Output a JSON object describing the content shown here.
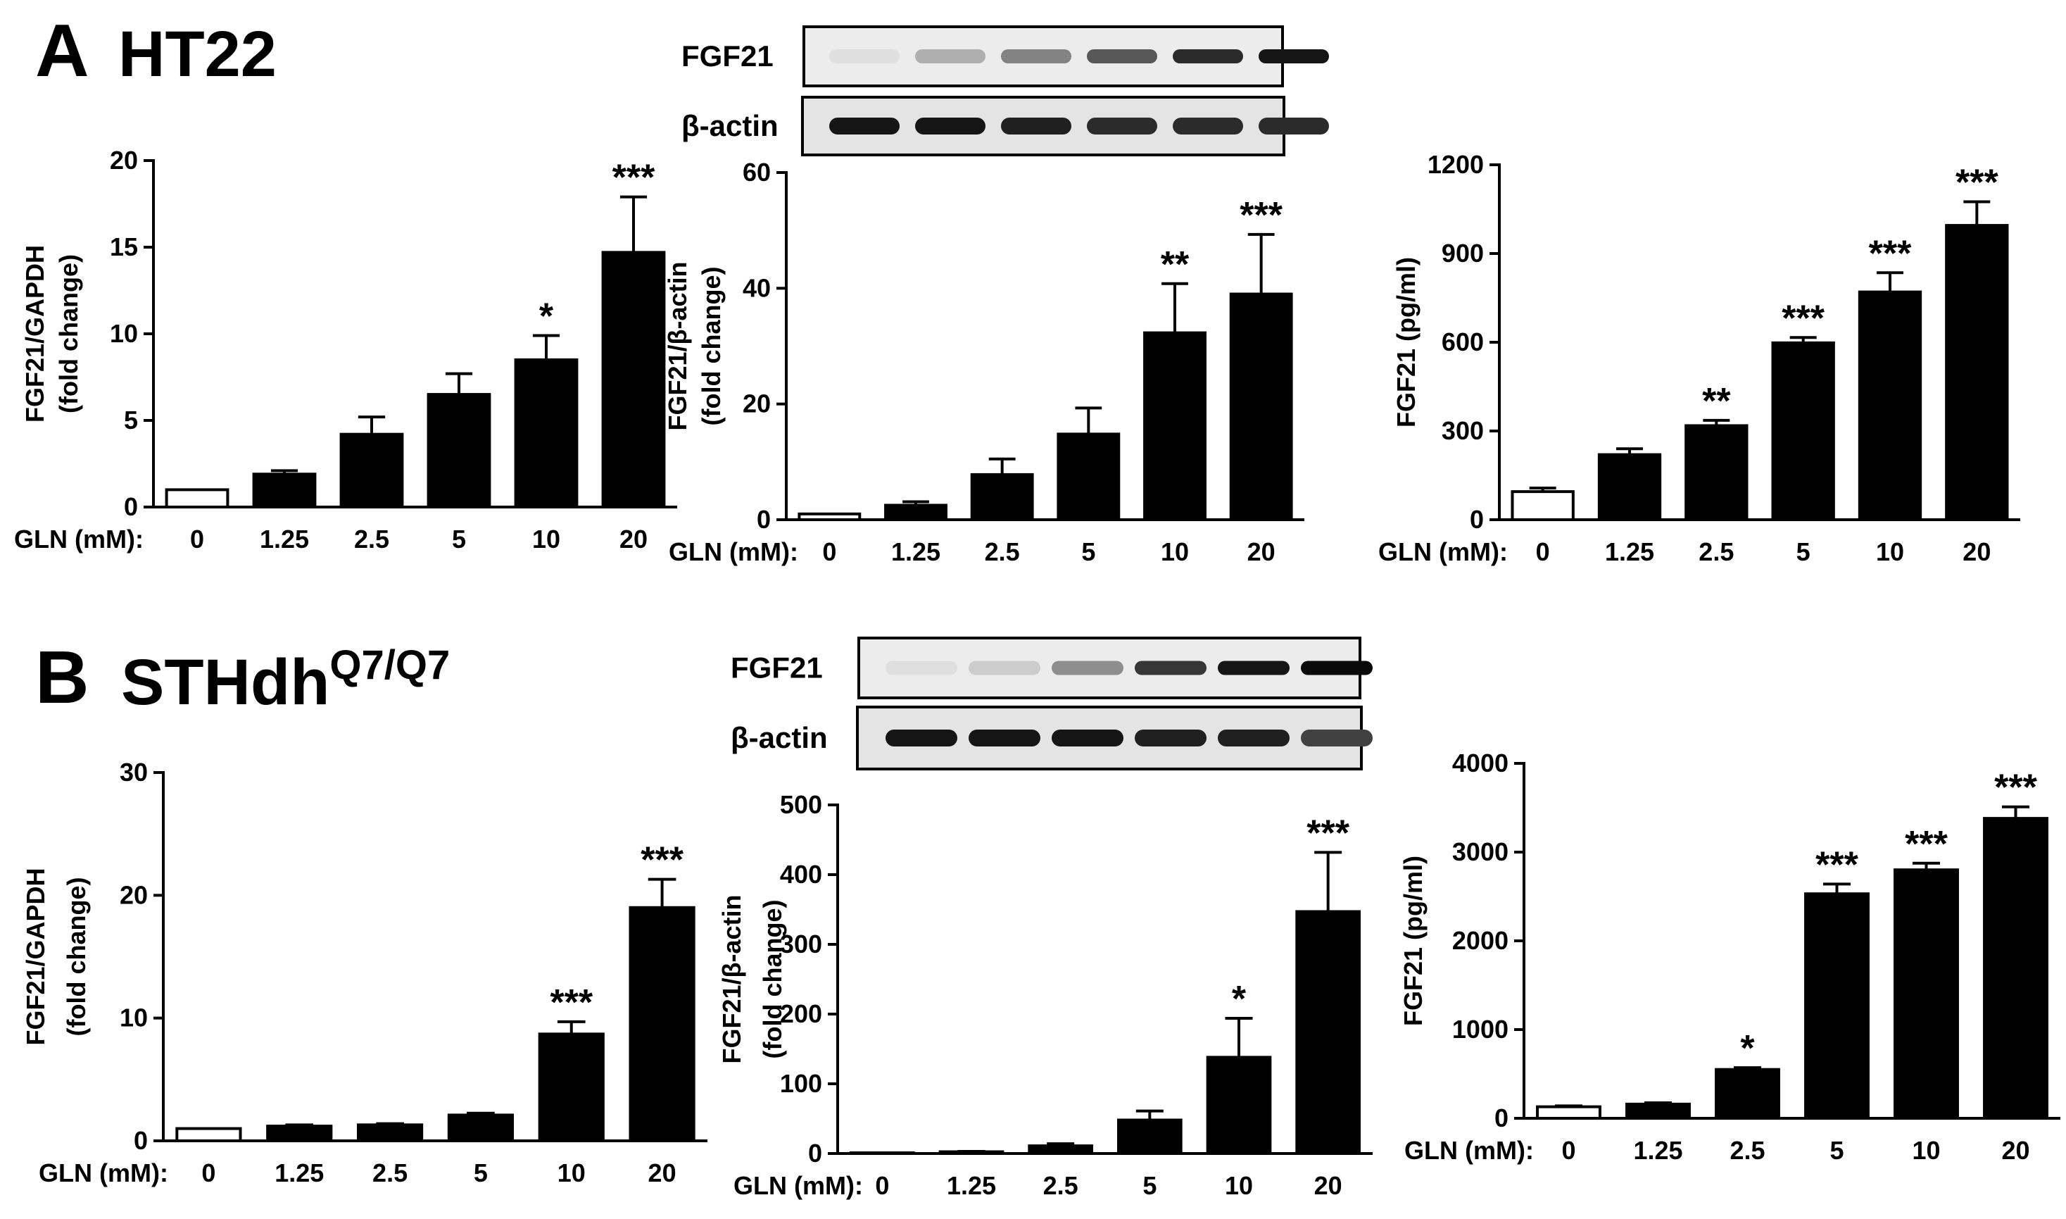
{
  "panels": [
    {
      "letter": "A",
      "cell": "HT22",
      "cell_sup": ""
    },
    {
      "letter": "B",
      "cell": "STHdh",
      "cell_sup": "Q7/Q7"
    }
  ],
  "blots": [
    {
      "target": "FGF21",
      "control": "β-actin",
      "target_intensity": [
        0.03,
        0.25,
        0.45,
        0.65,
        0.85,
        0.95
      ],
      "control_intensity": [
        0.95,
        0.95,
        0.9,
        0.85,
        0.85,
        0.85
      ]
    },
    {
      "target": "FGF21",
      "control": "β-actin",
      "target_intensity": [
        0.03,
        0.12,
        0.4,
        0.8,
        0.95,
        1.0
      ],
      "control_intensity": [
        0.95,
        0.95,
        0.95,
        0.9,
        0.9,
        0.75
      ]
    }
  ],
  "chart_data": [
    {
      "type": "bar",
      "panel": "A",
      "xlabel": "GLN (mM):",
      "categories": [
        "0",
        "1.25",
        "2.5",
        "5",
        "10",
        "20"
      ],
      "ylabel": [
        "FGF21/GAPDH",
        "(fold change)"
      ],
      "ylim": [
        0,
        20
      ],
      "yticks": [
        0,
        5,
        10,
        15,
        20
      ],
      "values": [
        1,
        1.9,
        4.2,
        6.5,
        8.5,
        14.7
      ],
      "errors": [
        0,
        0.2,
        1.0,
        1.2,
        1.4,
        3.2
      ],
      "significance": [
        "",
        "",
        "",
        "",
        "*",
        "***"
      ]
    },
    {
      "type": "bar",
      "panel": "A",
      "xlabel": "GLN (mM):",
      "categories": [
        "0",
        "1.25",
        "2.5",
        "5",
        "10",
        "20"
      ],
      "ylabel": [
        "FGF21/β-actin",
        "(fold change)"
      ],
      "ylim": [
        0,
        60
      ],
      "yticks": [
        0,
        20,
        40,
        60
      ],
      "values": [
        1,
        2.5,
        7.8,
        14.8,
        32.3,
        39
      ],
      "errors": [
        0,
        0.6,
        2.7,
        4.5,
        8.5,
        10.3
      ],
      "significance": [
        "",
        "",
        "",
        "",
        "**",
        "***"
      ]
    },
    {
      "type": "bar",
      "panel": "A",
      "xlabel": "GLN (mM):",
      "categories": [
        "0",
        "1.25",
        "2.5",
        "5",
        "10",
        "20"
      ],
      "ylabel": [
        "FGF21 (pg/ml)"
      ],
      "ylim": [
        0,
        1200
      ],
      "yticks": [
        0,
        300,
        600,
        900,
        1200
      ],
      "values": [
        95,
        220,
        318,
        598,
        770,
        995
      ],
      "errors": [
        12,
        20,
        18,
        18,
        65,
        80
      ],
      "significance": [
        "",
        "",
        "**",
        "***",
        "***",
        "***"
      ]
    },
    {
      "type": "bar",
      "panel": "B",
      "xlabel": "GLN (mM):",
      "categories": [
        "0",
        "1.25",
        "2.5",
        "5",
        "10",
        "20"
      ],
      "ylabel": [
        "FGF21/GAPDH",
        "(fold change)"
      ],
      "ylim": [
        0,
        30
      ],
      "yticks": [
        0,
        10,
        20,
        30
      ],
      "values": [
        1,
        1.2,
        1.3,
        2.1,
        8.7,
        19
      ],
      "errors": [
        0,
        0.1,
        0.1,
        0.15,
        1.0,
        2.3
      ],
      "significance": [
        "",
        "",
        "",
        "",
        "***",
        "***"
      ]
    },
    {
      "type": "bar",
      "panel": "B",
      "xlabel": "GLN (mM):",
      "categories": [
        "0",
        "1.25",
        "2.5",
        "5",
        "10",
        "20"
      ],
      "ylabel": [
        "FGF21/β-actin",
        "(fold change)"
      ],
      "ylim": [
        0,
        500
      ],
      "yticks": [
        0,
        100,
        200,
        300,
        400,
        500
      ],
      "values": [
        1,
        2.5,
        11,
        48,
        138,
        347
      ],
      "errors": [
        0,
        0.5,
        3,
        13,
        56,
        85
      ],
      "significance": [
        "",
        "",
        "",
        "",
        "*",
        "***"
      ]
    },
    {
      "type": "bar",
      "panel": "B",
      "xlabel": "GLN (mM):",
      "categories": [
        "0",
        "1.25",
        "2.5",
        "5",
        "10",
        "20"
      ],
      "ylabel": [
        "FGF21 (pg/ml)"
      ],
      "ylim": [
        0,
        4000
      ],
      "yticks": [
        0,
        1000,
        2000,
        3000,
        4000
      ],
      "values": [
        130,
        160,
        550,
        2530,
        2800,
        3380
      ],
      "errors": [
        10,
        15,
        20,
        110,
        75,
        130
      ],
      "significance": [
        "",
        "",
        "*",
        "***",
        "***",
        "***"
      ]
    }
  ]
}
